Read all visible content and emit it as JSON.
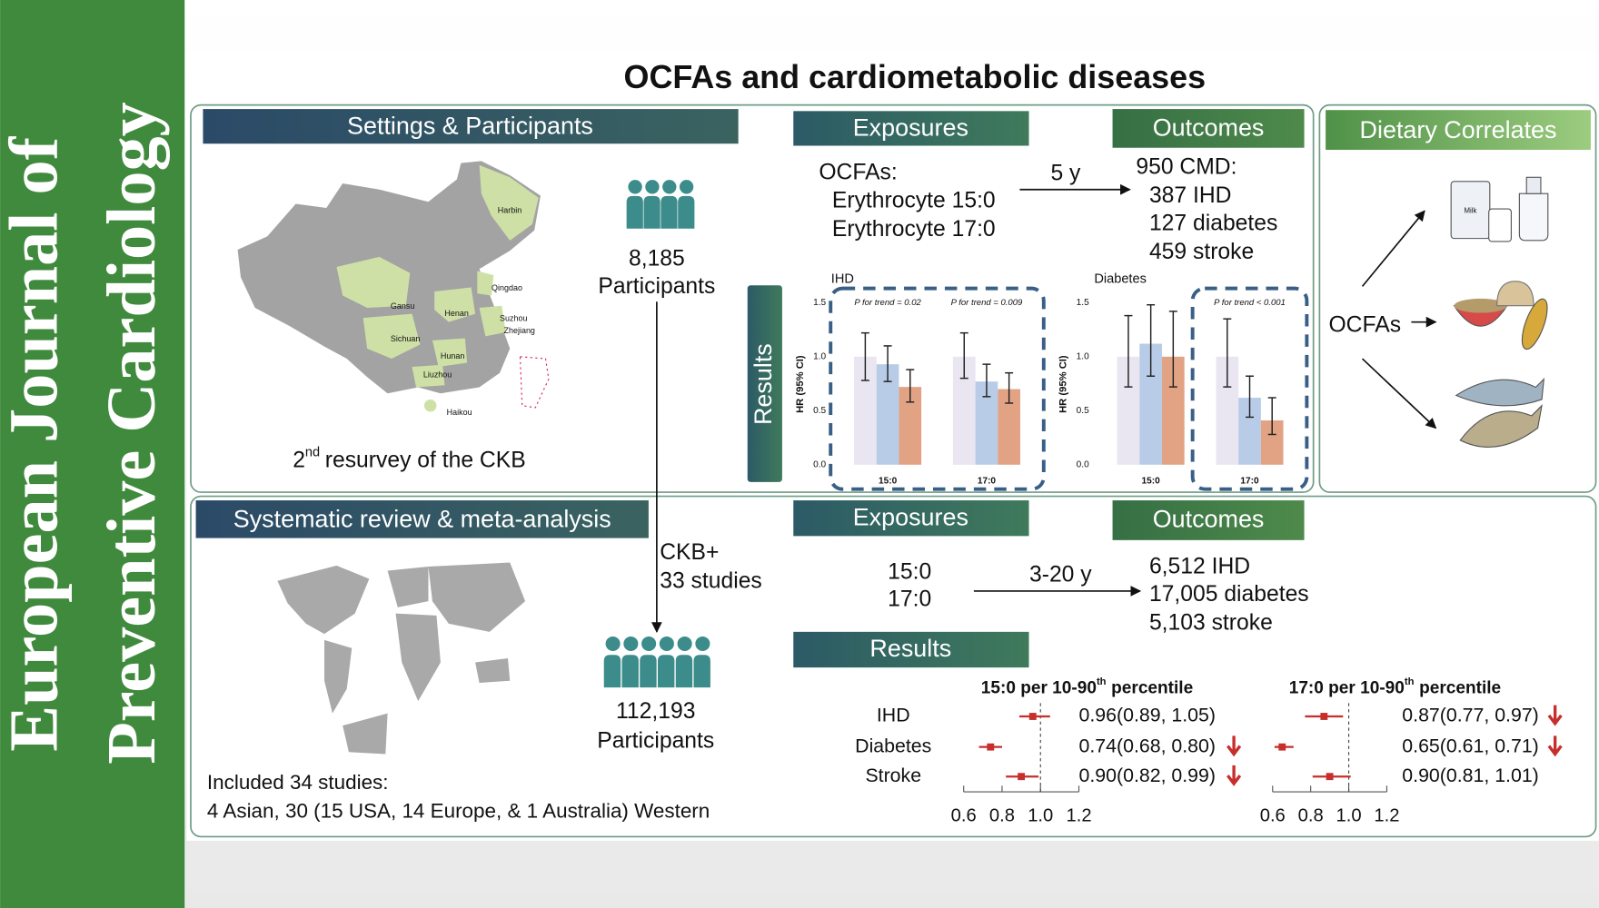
{
  "sidebar": {
    "line1": "European Journal of",
    "line2": "Preventive Cardiology"
  },
  "title": "OCFAs and cardiometabolic diseases",
  "top": {
    "settings": {
      "header": "Settings & Participants",
      "map_labels": [
        "Harbin",
        "Qingdao",
        "Gansu",
        "Henan",
        "Suzhou",
        "Zhejiang",
        "Sichuan",
        "Hunan",
        "Liuzhou",
        "Haikou"
      ],
      "count": "8,185",
      "count_label": "Participants",
      "caption": {
        "num": "2",
        "sup": "nd",
        "rest": "resurvey of the CKB"
      }
    },
    "exposures": {
      "header": "Exposures",
      "lines": [
        "OCFAs:",
        "Erythrocyte 15:0",
        "Erythrocyte 17:0"
      ]
    },
    "arrow_label": "5 y",
    "outcomes": {
      "header": "Outcomes",
      "lines": [
        "950 CMD:",
        "387 IHD",
        "127 diabetes",
        "459 stroke"
      ]
    },
    "results_label": "Results",
    "dietary": {
      "header": "Dietary Correlates",
      "source": "OCFAs",
      "milk_label": "Milk"
    }
  },
  "bottom": {
    "review": {
      "header": "Systematic review & meta-analysis",
      "studies": [
        "CKB+",
        "33 studies"
      ],
      "count": "112,193",
      "count_label": "Participants",
      "included": [
        "Included 34 studies:",
        "4 Asian, 30 (15 USA, 14 Europe, & 1 Australia) Western"
      ]
    },
    "exposures": {
      "header": "Exposures",
      "lines": [
        "15:0",
        "17:0"
      ]
    },
    "arrow_label": "3-20 y",
    "outcomes": {
      "header": "Outcomes",
      "lines": [
        "6,512 IHD",
        "17,005 diabetes",
        "5,103 stroke"
      ]
    },
    "results_header": "Results"
  },
  "chart_data": [
    {
      "type": "bar",
      "title": "IHD",
      "y_label": "HR (95% CI)",
      "categories": [
        "15:0",
        "17:0"
      ],
      "series": [
        {
          "color": "#e9e5f1",
          "values": [
            1.0,
            1.0
          ],
          "lower": [
            0.78,
            0.8
          ],
          "upper": [
            1.22,
            1.22
          ]
        },
        {
          "color": "#b8cce8",
          "values": [
            0.93,
            0.77
          ],
          "lower": [
            0.77,
            0.63
          ],
          "upper": [
            1.1,
            0.93
          ]
        },
        {
          "color": "#e2a385",
          "values": [
            0.72,
            0.7
          ],
          "lower": [
            0.58,
            0.57
          ],
          "upper": [
            0.88,
            0.85
          ]
        }
      ],
      "annotations": [
        "P for trend = 0.02",
        "P for trend = 0.009"
      ],
      "ylim": [
        0,
        1.5
      ],
      "yticks": [
        {
          "value": 0,
          "label": "0.0"
        },
        0.5,
        {
          "value": 1,
          "label": "1.0"
        },
        1.5
      ]
    },
    {
      "type": "bar",
      "title": "Diabetes",
      "y_label": "HR (95% CI)",
      "categories": [
        "15:0",
        "17:0"
      ],
      "series": [
        {
          "color": "#e9e5f1",
          "values": [
            1.0,
            1.0
          ],
          "lower": [
            0.72,
            0.72
          ],
          "upper": [
            1.38,
            1.35
          ]
        },
        {
          "color": "#b8cce8",
          "values": [
            1.12,
            0.62
          ],
          "lower": [
            0.82,
            0.44
          ],
          "upper": [
            1.48,
            0.82
          ]
        },
        {
          "color": "#e2a385",
          "values": [
            1.0,
            0.41
          ],
          "lower": [
            0.72,
            0.28
          ],
          "upper": [
            1.42,
            0.62
          ]
        }
      ],
      "annotations": [
        null,
        "P for trend < 0.001"
      ],
      "ylim": [
        0,
        1.5
      ],
      "yticks": [
        {
          "value": 0,
          "label": "0.0"
        },
        0.5,
        {
          "value": 1,
          "label": "1.0"
        },
        1.5
      ]
    },
    {
      "type": "forest",
      "title": {
        "main": "15:0 per 10-90",
        "sup": "th",
        "rest": "percentile"
      },
      "categories": [
        "IHD",
        "Diabetes",
        "Stroke"
      ],
      "values": [
        0.96,
        0.74,
        0.9
      ],
      "lower": [
        0.89,
        0.68,
        0.82
      ],
      "upper": [
        1.05,
        0.8,
        0.99
      ],
      "value_labels": [
        "0.96(0.89, 1.05)",
        "0.74(0.68, 0.80)",
        "0.90(0.82, 0.99)"
      ],
      "significant": [
        false,
        true,
        true
      ],
      "color": "#c62f2b",
      "reference": 1,
      "xlim": [
        0.6,
        1.2
      ],
      "xticks": [
        0.6,
        0.8,
        {
          "value": 1,
          "label": "1.0"
        },
        1.2
      ]
    },
    {
      "type": "forest",
      "title": {
        "main": "17:0 per 10-90",
        "sup": "th",
        "rest": "percentile"
      },
      "values": [
        0.87,
        0.65,
        0.9
      ],
      "lower": [
        0.77,
        0.61,
        0.81
      ],
      "upper": [
        0.97,
        0.71,
        1.01
      ],
      "value_labels": [
        "0.87(0.77, 0.97)",
        "0.65(0.61, 0.71)",
        "0.90(0.81, 1.01)"
      ],
      "significant": [
        true,
        true,
        false
      ],
      "color": "#c62f2b",
      "reference": 1,
      "xlim": [
        0.6,
        1.2
      ],
      "xticks": [
        0.6,
        0.8,
        {
          "value": 1,
          "label": "1.0"
        },
        1.2
      ]
    }
  ]
}
